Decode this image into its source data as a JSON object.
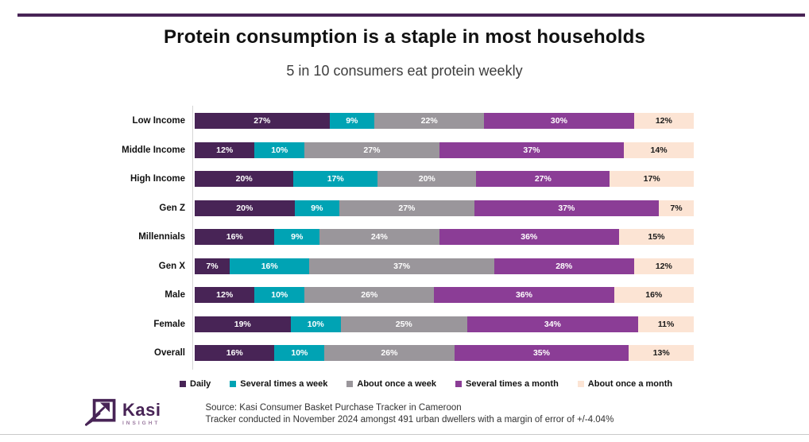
{
  "header": {
    "title": "Protein consumption is a staple in most households",
    "subtitle": "5 in 10 consumers eat protein weekly"
  },
  "chart_data": {
    "type": "bar",
    "orientation": "horizontal",
    "stacked": true,
    "xlim": [
      0,
      100
    ],
    "grid": false,
    "legend_position": "bottom",
    "data_labels": true,
    "data_label_suffix": "%",
    "categories": [
      "Low Income",
      "Middle Income",
      "High Income",
      "Gen Z",
      "Millennials",
      "Gen X",
      "Male",
      "Female",
      "Overall"
    ],
    "series": [
      {
        "name": "Daily",
        "color": "#482456",
        "label_color": "#FFFFFF",
        "values": [
          27,
          12,
          20,
          20,
          16,
          7,
          12,
          19,
          16
        ]
      },
      {
        "name": "Several times a week",
        "color": "#00A3B4",
        "label_color": "#FFFFFF",
        "values": [
          9,
          10,
          17,
          9,
          9,
          16,
          10,
          10,
          10
        ]
      },
      {
        "name": "About once a week",
        "color": "#9A969B",
        "label_color": "#FFFFFF",
        "values": [
          22,
          27,
          20,
          27,
          24,
          37,
          26,
          25,
          26
        ]
      },
      {
        "name": "Several times a month",
        "color": "#8B3D96",
        "label_color": "#FFFFFF",
        "values": [
          30,
          37,
          27,
          37,
          36,
          28,
          36,
          34,
          35
        ]
      },
      {
        "name": "About once a month",
        "color": "#FCE4D4",
        "label_color": "#1A1A1A",
        "values": [
          12,
          14,
          17,
          7,
          15,
          12,
          16,
          11,
          13
        ]
      }
    ]
  },
  "footer": {
    "logo": {
      "brand": "Kasi",
      "tagline": "INSIGHT"
    },
    "source_line1": "Source: Kasi Consumer Basket Purchase Tracker in Cameroon",
    "source_line2": "Tracker conducted in November 2024 amongst 491 urban dwellers with a margin of error of +/-4.04%"
  },
  "colors": {
    "accent_purple": "#482456",
    "top_rule": "#482456",
    "bottom_rule": "#C9C9C9",
    "axis_line": "#D5D5D5"
  }
}
